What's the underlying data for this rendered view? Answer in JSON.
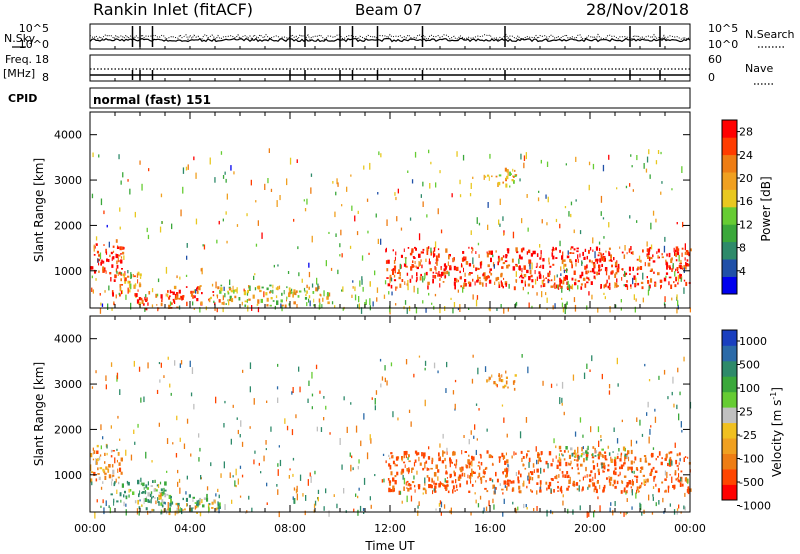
{
  "header": {
    "station": "Rankin Inlet (fitACF)",
    "beam": "Beam 07",
    "date": "28/Nov/2018"
  },
  "params": {
    "nsky_label": "N.Sky",
    "nsearch_label": "N.Search",
    "freq_label_top": "Freq.",
    "freq_label_unit": "[MHz]",
    "nave_label": "Nave",
    "cpid_label": "CPID",
    "cpid_value": "normal (fast) 151",
    "noise_ticks": [
      "10^5",
      "10^0"
    ],
    "freq_ticks": [
      "18",
      "8"
    ],
    "nave_ticks": [
      "60",
      "0"
    ]
  },
  "chart_data": [
    {
      "type": "heatmap",
      "title": "Power",
      "xlabel": "",
      "ylabel": "Slant Range [km]",
      "xlim": [
        "00:00",
        "24:00"
      ],
      "ylim": [
        180,
        4500
      ],
      "yticks": [
        "1000",
        "2000",
        "3000",
        "4000"
      ],
      "colorbar": {
        "label": "Power [dB]",
        "ticks": [
          "4",
          "8",
          "12",
          "16",
          "20",
          "24",
          "28"
        ],
        "range": [
          0,
          30
        ],
        "colors": [
          "#0000ee",
          "#2050a8",
          "#2e8a6a",
          "#3aa83a",
          "#66cc33",
          "#e8c820",
          "#f0a020",
          "#ee7d14",
          "#ff3c00",
          "#ff0000"
        ]
      },
      "echo_regions": [
        {
          "t": [
            0.0,
            1.3
          ],
          "range": [
            900,
            1700
          ],
          "power": 28
        },
        {
          "t": [
            0.8,
            2.0
          ],
          "range": [
            450,
            1000
          ],
          "power": 22
        },
        {
          "t": [
            1.8,
            3.6
          ],
          "range": [
            180,
            600
          ],
          "power": 28
        },
        {
          "t": [
            3.2,
            5.2
          ],
          "range": [
            300,
            700
          ],
          "power": 24
        },
        {
          "t": [
            5.0,
            9.5
          ],
          "range": [
            250,
            700
          ],
          "power": 16
        },
        {
          "t": [
            11.8,
            24.0
          ],
          "range": [
            650,
            1550
          ],
          "power": 28
        },
        {
          "t": [
            15.8,
            17.0
          ],
          "range": [
            2900,
            3300
          ],
          "power": 18
        }
      ]
    },
    {
      "type": "heatmap",
      "title": "Velocity",
      "xlabel": "Time UT",
      "ylabel": "Slant Range [km]",
      "xlim": [
        "00:00",
        "24:00"
      ],
      "ylim": [
        180,
        4500
      ],
      "xticks": [
        "00:00",
        "04:00",
        "08:00",
        "12:00",
        "16:00",
        "20:00",
        "00:00"
      ],
      "yticks": [
        "1000",
        "2000",
        "3000",
        "4000"
      ],
      "colorbar": {
        "label": "Velocity [m s^-1]",
        "ticks": [
          "1000",
          "500",
          "100",
          "25",
          "-25",
          "-100",
          "-500",
          "-1000"
        ],
        "colors": [
          "#1a3fbf",
          "#2b6aa8",
          "#2e8a6a",
          "#3aa83a",
          "#66cc33",
          "#c0c0c0",
          "#f0c020",
          "#f0a020",
          "#ee7d14",
          "#ff4500",
          "#ff0000"
        ]
      },
      "echo_regions": [
        {
          "t": [
            0.0,
            1.3
          ],
          "range": [
            900,
            1700
          ],
          "velocity": -150
        },
        {
          "t": [
            0.8,
            3.0
          ],
          "range": [
            400,
            900
          ],
          "velocity": 100
        },
        {
          "t": [
            1.8,
            5.2
          ],
          "range": [
            180,
            600
          ],
          "velocity": 50
        },
        {
          "t": [
            11.8,
            24.0
          ],
          "range": [
            650,
            1550
          ],
          "velocity": -300
        },
        {
          "t": [
            18.5,
            21.5
          ],
          "range": [
            1350,
            1650
          ],
          "velocity": 0
        },
        {
          "t": [
            15.8,
            17.0
          ],
          "range": [
            2900,
            3300
          ],
          "velocity": -100
        }
      ]
    }
  ]
}
